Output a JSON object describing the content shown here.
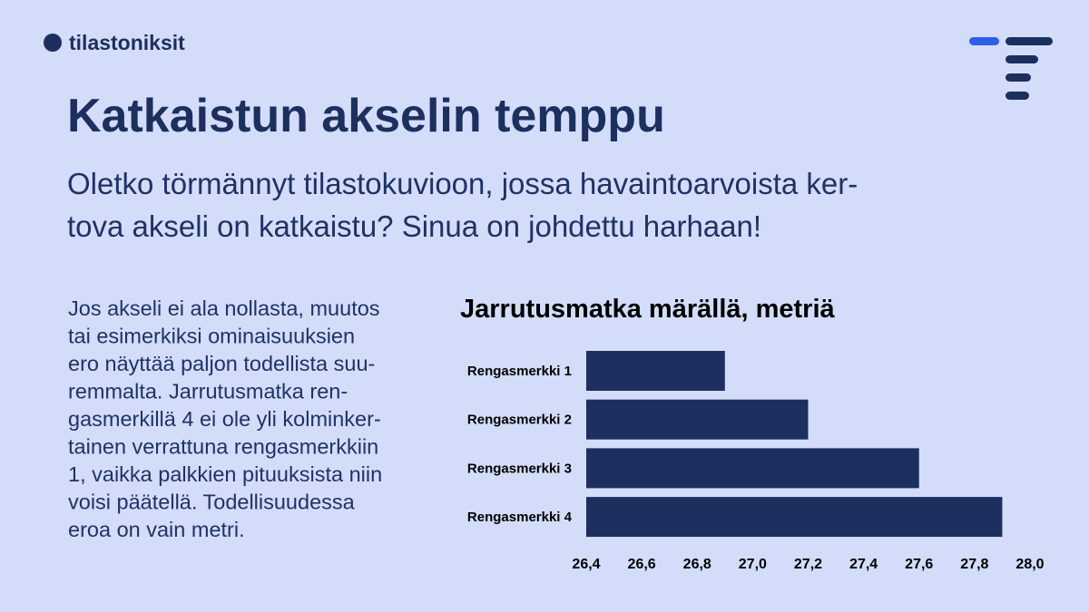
{
  "brand": "tilastoniksit",
  "title": "Katkaistun akselin temppu",
  "subtitle_lines": [
    "Oletko törmännyt tilastokuvioon, jossa havaintoarvoista ker-",
    "tova akseli on katkaistu? Sinua on johdettu harhaan!"
  ],
  "body_lines": [
    "Jos akseli ei ala nollasta, muutos",
    "tai esimerkiksi ominaisuuksien",
    "ero näyttää paljon todellista suu-",
    "remmalta. Jarrutusmatka ren-",
    "gasmerkillä 4 ei ole yli kolminker-",
    "tainen verrattuna rengasmerkkiin",
    "1, vaikka palkkien pituuksista niin",
    "voisi päätellä. Todellisuudessa",
    "eroa on vain metri."
  ],
  "chart_data": {
    "type": "hbar",
    "title": "Jarrutusmatka märällä, metriä",
    "categories": [
      "Rengasmerkki 1",
      "Rengasmerkki 2",
      "Rengasmerkki 3",
      "Rengasmerkki 4"
    ],
    "values": [
      26.9,
      27.2,
      27.6,
      27.9
    ],
    "color": "#1c2f5e",
    "xlim": [
      26.4,
      28.0
    ],
    "xticks": [
      {
        "value": 26.4,
        "label": "26,4"
      },
      {
        "value": 26.6,
        "label": "26,6"
      },
      {
        "value": 26.8,
        "label": "26,8"
      },
      {
        "value": 27.0,
        "label": "27,0"
      },
      {
        "value": 27.2,
        "label": "27,2"
      },
      {
        "value": 27.4,
        "label": "27,4"
      },
      {
        "value": 27.6,
        "label": "27,6"
      },
      {
        "value": 27.8,
        "label": "27,8"
      },
      {
        "value": 28.0,
        "label": "28,0"
      }
    ],
    "grid": false
  }
}
